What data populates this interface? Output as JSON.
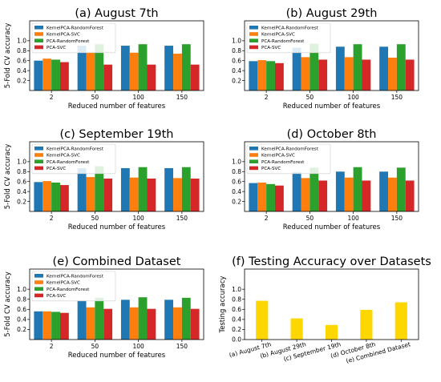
{
  "chart_data": [
    {
      "type": "bar",
      "title": "(a) August 7th",
      "xlabel": "Reduced number of features",
      "ylabel": "5-Fold CV accuracy",
      "categories": [
        "2",
        "50",
        "100",
        "150"
      ],
      "yticks": [
        "0.2",
        "0.4",
        "0.6",
        "0.8",
        "1.0"
      ],
      "ylim": [
        0,
        1.4
      ],
      "legend": "upper-left",
      "series": [
        {
          "name": "KernelPCA-RandomForest",
          "values": [
            0.6,
            0.9,
            0.9,
            0.9
          ]
        },
        {
          "name": "KernelPCA-SVC",
          "values": [
            0.64,
            0.76,
            0.76,
            0.74
          ]
        },
        {
          "name": "PCA-RandomForest",
          "values": [
            0.62,
            0.93,
            0.93,
            0.93
          ]
        },
        {
          "name": "PCA-SVC",
          "values": [
            0.57,
            0.52,
            0.52,
            0.52
          ]
        }
      ]
    },
    {
      "type": "bar",
      "title": "(b) August 29th",
      "xlabel": "Reduced number of features",
      "ylabel": "",
      "categories": [
        "2",
        "50",
        "100",
        "150"
      ],
      "yticks": [
        "0.2",
        "0.4",
        "0.6",
        "0.8",
        "1.0"
      ],
      "ylim": [
        0,
        1.4
      ],
      "legend": "upper-left",
      "series": [
        {
          "name": "KernelPCA-RandomForest",
          "values": [
            0.59,
            0.86,
            0.88,
            0.88
          ]
        },
        {
          "name": "KernelPCA-SVC",
          "values": [
            0.61,
            0.67,
            0.67,
            0.66
          ]
        },
        {
          "name": "PCA-RandomForest",
          "values": [
            0.59,
            0.94,
            0.93,
            0.93
          ]
        },
        {
          "name": "PCA-SVC",
          "values": [
            0.55,
            0.62,
            0.62,
            0.62
          ]
        }
      ]
    },
    {
      "type": "bar",
      "title": "(c) September 19th",
      "xlabel": "Reduced number of features",
      "ylabel": "5-Fold CV accuracy",
      "categories": [
        "2",
        "50",
        "100",
        "150"
      ],
      "yticks": [
        "0.2",
        "0.4",
        "0.6",
        "0.8",
        "1.0"
      ],
      "ylim": [
        0,
        1.4
      ],
      "legend": "upper-left",
      "series": [
        {
          "name": "KernelPCA-RandomForest",
          "values": [
            0.59,
            0.87,
            0.87,
            0.87
          ]
        },
        {
          "name": "KernelPCA-SVC",
          "values": [
            0.61,
            0.69,
            0.68,
            0.67
          ]
        },
        {
          "name": "PCA-RandomForest",
          "values": [
            0.58,
            0.91,
            0.89,
            0.89
          ]
        },
        {
          "name": "PCA-SVC",
          "values": [
            0.53,
            0.66,
            0.66,
            0.66
          ]
        }
      ]
    },
    {
      "type": "bar",
      "title": "(d) October 8th",
      "xlabel": "Reduced number of features",
      "ylabel": "",
      "categories": [
        "2",
        "50",
        "100",
        "150"
      ],
      "yticks": [
        "0.2",
        "0.4",
        "0.6",
        "0.8",
        "1.0"
      ],
      "ylim": [
        0,
        1.4
      ],
      "legend": "upper-left",
      "series": [
        {
          "name": "KernelPCA-RandomForest",
          "values": [
            0.57,
            0.79,
            0.8,
            0.8
          ]
        },
        {
          "name": "KernelPCA-SVC",
          "values": [
            0.58,
            0.67,
            0.68,
            0.68
          ]
        },
        {
          "name": "PCA-RandomForest",
          "values": [
            0.55,
            0.88,
            0.89,
            0.88
          ]
        },
        {
          "name": "PCA-SVC",
          "values": [
            0.52,
            0.62,
            0.62,
            0.62
          ]
        }
      ]
    },
    {
      "type": "bar",
      "title": "(e) Combined Dataset",
      "xlabel": "Reduced number of features",
      "ylabel": "5-Fold CV accuracy",
      "categories": [
        "2",
        "50",
        "100",
        "150"
      ],
      "yticks": [
        "0.2",
        "0.4",
        "0.6",
        "0.8",
        "1.0"
      ],
      "ylim": [
        0,
        1.4
      ],
      "legend": "upper-left",
      "series": [
        {
          "name": "KernelPCA-RandomForest",
          "values": [
            0.56,
            0.78,
            0.79,
            0.79
          ]
        },
        {
          "name": "KernelPCA-SVC",
          "values": [
            0.56,
            0.64,
            0.64,
            0.64
          ]
        },
        {
          "name": "PCA-RandomForest",
          "values": [
            0.55,
            0.83,
            0.84,
            0.83
          ]
        },
        {
          "name": "PCA-SVC",
          "values": [
            0.53,
            0.61,
            0.61,
            0.61
          ]
        }
      ]
    },
    {
      "type": "bar",
      "title": "(f) Testing Accuracy over Datasets",
      "xlabel": "",
      "ylabel": "Testing accuracy",
      "categories": [
        "(a) August 7th",
        "(b) August 29th",
        "(c) September 19th",
        "(d) October 8th",
        "(e) Combined Dataset"
      ],
      "yticks": [
        "0.0",
        "0.2",
        "0.4",
        "0.6",
        "0.8",
        "1.0"
      ],
      "ylim": [
        0,
        1.4
      ],
      "legend": "none",
      "series": [
        {
          "values": [
            0.77,
            0.42,
            0.29,
            0.59,
            0.74
          ]
        }
      ]
    }
  ],
  "colors": {
    "series": [
      "#1f77b4",
      "#ff7f0e",
      "#2ca02c",
      "#d62728"
    ],
    "single": "#ffd700",
    "axis": "#000000"
  }
}
